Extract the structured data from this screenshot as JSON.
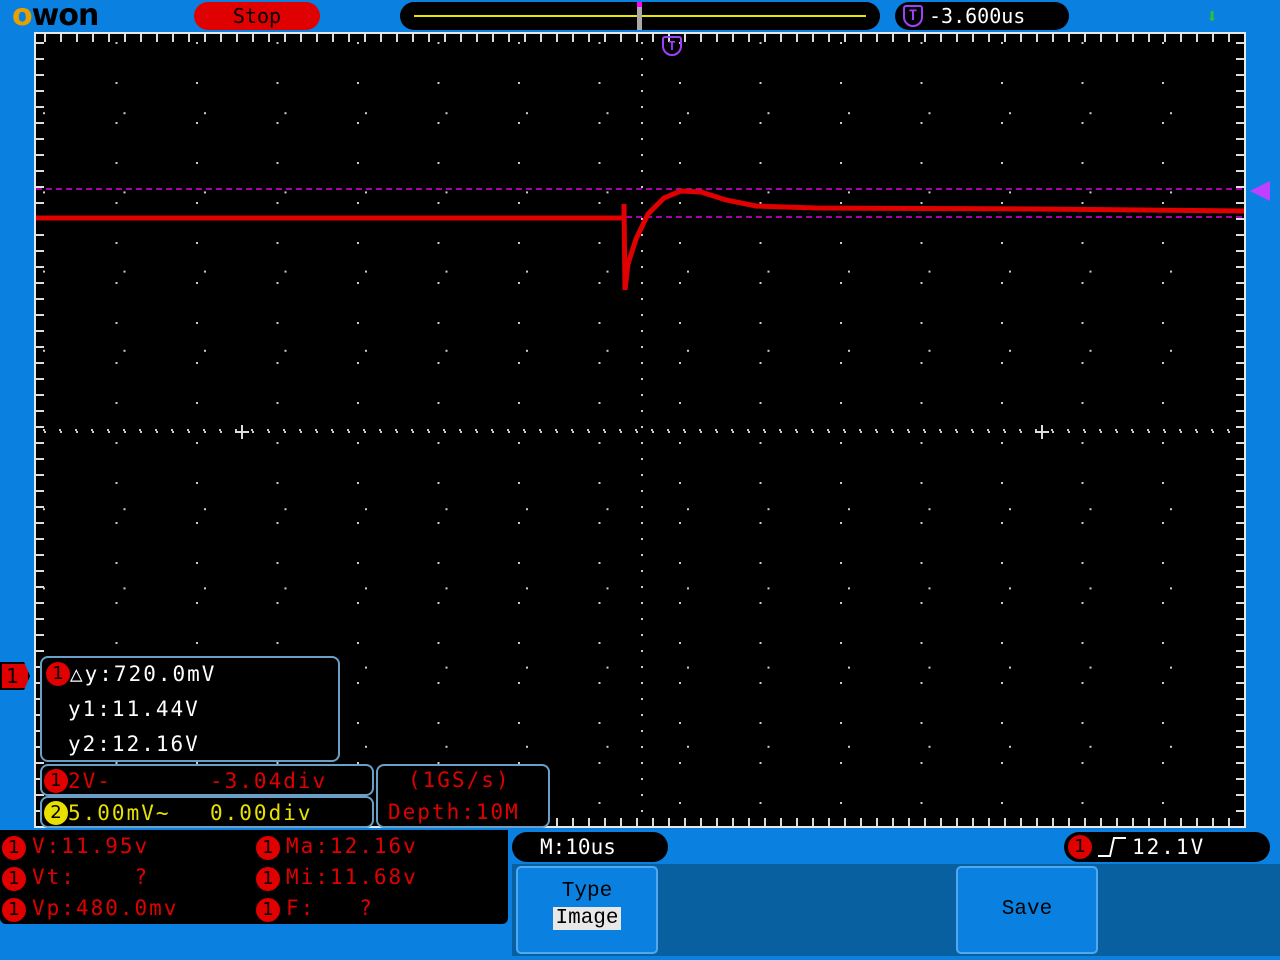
{
  "header": {
    "brand": "OWON",
    "run_state": "Stop",
    "trigger_position": "-3.600us",
    "trigger_badge": "T"
  },
  "colors": {
    "ch1": "#e00000",
    "ch2": "#e8e000",
    "cursor": "#e000e0",
    "background": "#0a80e0"
  },
  "channel_marker": "1",
  "cursor_readout": {
    "channel": "1",
    "delta": "△y:720.0mV",
    "y1": "y1:11.44V",
    "y2": "y2:12.16V"
  },
  "channels": [
    {
      "id": "1",
      "scale": "2V-",
      "offset": "-3.04div"
    },
    {
      "id": "2",
      "scale": "5.00mV~",
      "offset": "0.00div"
    }
  ],
  "acquisition": {
    "rate": "(1GS/s)",
    "depth": "Depth:10M"
  },
  "measurements": [
    {
      "ch": "1",
      "text": "V:11.95v"
    },
    {
      "ch": "1",
      "text": "Ma:12.16v"
    },
    {
      "ch": "1",
      "text": "Vt:    ?"
    },
    {
      "ch": "1",
      "text": "Mi:11.68v"
    },
    {
      "ch": "1",
      "text": "Vp:480.0mv"
    },
    {
      "ch": "1",
      "text": "F:   ?"
    }
  ],
  "timebase": "M:10us",
  "trigger": {
    "channel": "1",
    "edge": "rising",
    "level": "12.1V"
  },
  "menu": {
    "type_label": "Type",
    "type_value": "Image",
    "save_label": "Save"
  },
  "icons": {
    "usb": "usb-icon",
    "trigger": "trigger-icon",
    "rising_edge": "rising-edge-icon"
  }
}
